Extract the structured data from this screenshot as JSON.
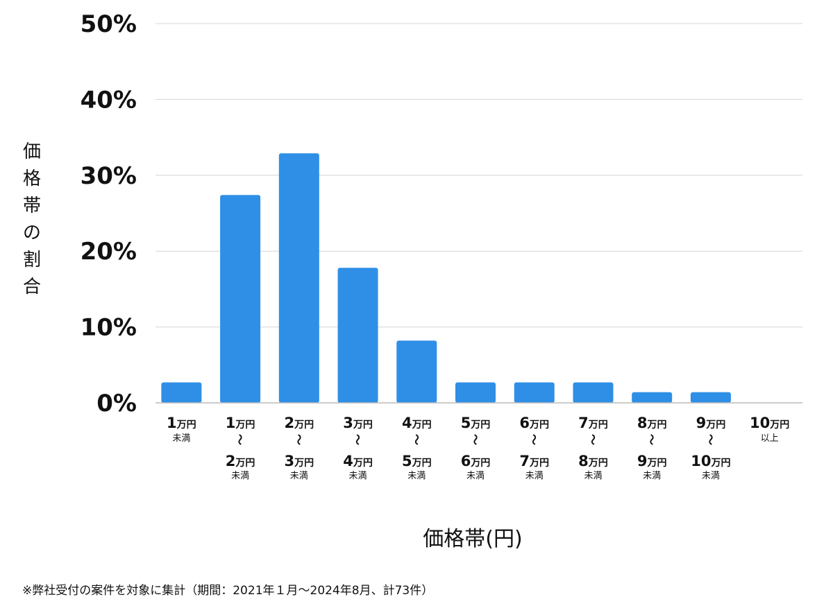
{
  "chart_data": {
    "type": "bar",
    "xlabel": "価格帯(円)",
    "ylabel": "価格帯の割合",
    "ylim": [
      0,
      50
    ],
    "yticks": [
      "0%",
      "10%",
      "20%",
      "30%",
      "40%",
      "50%"
    ],
    "grid": true,
    "color": "#2f8fe6",
    "categories": [
      {
        "top_num": "1",
        "top_unit": "万円",
        "bottom_num": "",
        "bottom_unit": "",
        "suffix": "未満",
        "range": false
      },
      {
        "top_num": "1",
        "top_unit": "万円",
        "bottom_num": "2",
        "bottom_unit": "万円",
        "suffix": "未満",
        "range": true
      },
      {
        "top_num": "2",
        "top_unit": "万円",
        "bottom_num": "3",
        "bottom_unit": "万円",
        "suffix": "未満",
        "range": true
      },
      {
        "top_num": "3",
        "top_unit": "万円",
        "bottom_num": "4",
        "bottom_unit": "万円",
        "suffix": "未満",
        "range": true
      },
      {
        "top_num": "4",
        "top_unit": "万円",
        "bottom_num": "5",
        "bottom_unit": "万円",
        "suffix": "未満",
        "range": true
      },
      {
        "top_num": "5",
        "top_unit": "万円",
        "bottom_num": "6",
        "bottom_unit": "万円",
        "suffix": "未満",
        "range": true
      },
      {
        "top_num": "6",
        "top_unit": "万円",
        "bottom_num": "7",
        "bottom_unit": "万円",
        "suffix": "未満",
        "range": true
      },
      {
        "top_num": "7",
        "top_unit": "万円",
        "bottom_num": "8",
        "bottom_unit": "万円",
        "suffix": "未満",
        "range": true
      },
      {
        "top_num": "8",
        "top_unit": "万円",
        "bottom_num": "9",
        "bottom_unit": "万円",
        "suffix": "未満",
        "range": true
      },
      {
        "top_num": "9",
        "top_unit": "万円",
        "bottom_num": "10",
        "bottom_unit": "万円",
        "suffix": "未満",
        "range": true
      },
      {
        "top_num": "10",
        "top_unit": "万円",
        "bottom_num": "",
        "bottom_unit": "",
        "suffix": "以上",
        "range": false
      }
    ],
    "values": [
      2.7,
      27.4,
      32.9,
      17.8,
      8.2,
      2.7,
      2.7,
      2.7,
      1.4,
      1.4,
      0
    ]
  },
  "range_mark": "〜",
  "footnote": "※弊社受付の案件を対象に集計（期間：2021年１月〜2024年8月、計73件）"
}
